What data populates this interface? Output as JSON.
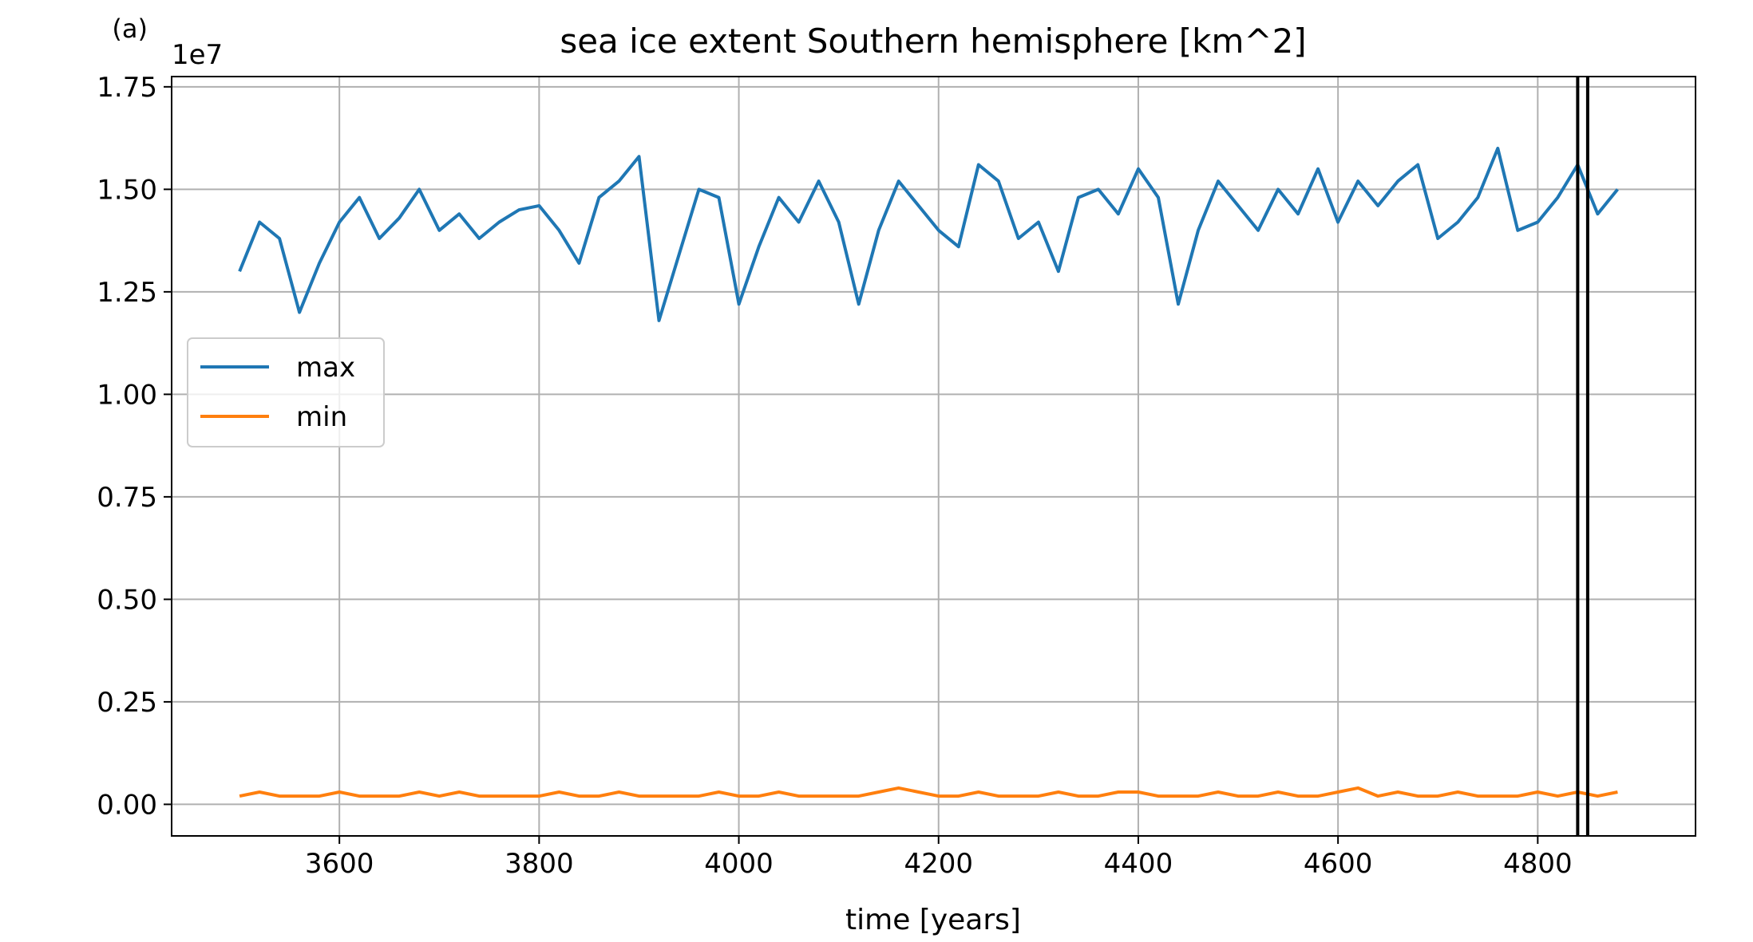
{
  "chart_data": {
    "type": "line",
    "panel_label": "(a)",
    "title": "sea ice extent Southern hemisphere [km^2]",
    "xlabel": "time [years]",
    "y_offset_label": "1e7",
    "x": [
      3500,
      3520,
      3540,
      3560,
      3580,
      3600,
      3620,
      3640,
      3660,
      3680,
      3700,
      3720,
      3740,
      3760,
      3780,
      3800,
      3820,
      3840,
      3860,
      3880,
      3900,
      3920,
      3940,
      3960,
      3980,
      4000,
      4020,
      4040,
      4060,
      4080,
      4100,
      4120,
      4140,
      4160,
      4180,
      4200,
      4220,
      4240,
      4260,
      4280,
      4300,
      4320,
      4340,
      4360,
      4380,
      4400,
      4420,
      4440,
      4460,
      4480,
      4500,
      4520,
      4540,
      4560,
      4580,
      4600,
      4620,
      4640,
      4660,
      4680,
      4700,
      4720,
      4740,
      4760,
      4780,
      4800,
      4820,
      4840,
      4860,
      4880
    ],
    "series": [
      {
        "name": "max",
        "color": "#1f77b4",
        "values": [
          1.3,
          1.42,
          1.38,
          1.2,
          1.32,
          1.42,
          1.48,
          1.38,
          1.43,
          1.5,
          1.4,
          1.44,
          1.38,
          1.42,
          1.45,
          1.46,
          1.4,
          1.32,
          1.48,
          1.52,
          1.58,
          1.18,
          1.34,
          1.5,
          1.48,
          1.22,
          1.36,
          1.48,
          1.42,
          1.52,
          1.42,
          1.22,
          1.4,
          1.52,
          1.46,
          1.4,
          1.36,
          1.56,
          1.52,
          1.38,
          1.42,
          1.3,
          1.48,
          1.5,
          1.44,
          1.55,
          1.48,
          1.22,
          1.4,
          1.52,
          1.46,
          1.4,
          1.5,
          1.44,
          1.55,
          1.42,
          1.52,
          1.46,
          1.52,
          1.56,
          1.38,
          1.42,
          1.48,
          1.6,
          1.4,
          1.42,
          1.48,
          1.56,
          1.44,
          1.5
        ]
      },
      {
        "name": "min",
        "color": "#ff7f0e",
        "values": [
          0.02,
          0.03,
          0.02,
          0.02,
          0.02,
          0.03,
          0.02,
          0.02,
          0.02,
          0.03,
          0.02,
          0.03,
          0.02,
          0.02,
          0.02,
          0.02,
          0.03,
          0.02,
          0.02,
          0.03,
          0.02,
          0.02,
          0.02,
          0.02,
          0.03,
          0.02,
          0.02,
          0.03,
          0.02,
          0.02,
          0.02,
          0.02,
          0.03,
          0.04,
          0.03,
          0.02,
          0.02,
          0.03,
          0.02,
          0.02,
          0.02,
          0.03,
          0.02,
          0.02,
          0.03,
          0.03,
          0.02,
          0.02,
          0.02,
          0.03,
          0.02,
          0.02,
          0.03,
          0.02,
          0.02,
          0.03,
          0.04,
          0.02,
          0.03,
          0.02,
          0.02,
          0.03,
          0.02,
          0.02,
          0.02,
          0.03,
          0.02,
          0.03,
          0.02,
          0.03
        ]
      }
    ],
    "vlines": [
      4840,
      4850
    ],
    "vline_color": "#000000",
    "xlim": [
      3432,
      4958
    ],
    "ylim": [
      -0.077,
      1.775
    ],
    "xticks": [
      3600,
      3800,
      4000,
      4200,
      4400,
      4600,
      4800
    ],
    "yticks": [
      {
        "value": 0,
        "label": "0.00"
      },
      {
        "value": 0.25,
        "label": "0.25"
      },
      {
        "value": 0.5,
        "label": "0.50"
      },
      {
        "value": 0.75,
        "label": "0.75"
      },
      {
        "value": 1,
        "label": "1.00"
      },
      {
        "value": 1.25,
        "label": "1.25"
      },
      {
        "value": 1.5,
        "label": "1.50"
      },
      {
        "value": 1.75,
        "label": "1.75"
      }
    ],
    "grid": true,
    "legend": "center left"
  }
}
